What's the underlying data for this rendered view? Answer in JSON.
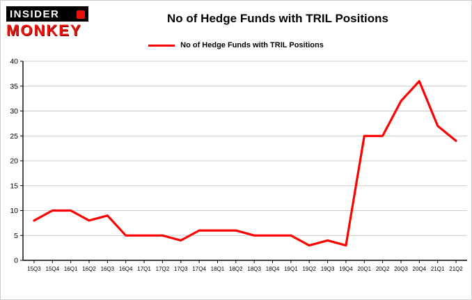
{
  "logo": {
    "line1": "INSIDER",
    "line2": "MONKEY"
  },
  "header": {
    "title": "No of Hedge Funds with TRIL Positions"
  },
  "chart_data": {
    "type": "line",
    "title": "No of Hedge Funds with TRIL Positions",
    "xlabel": "",
    "ylabel": "",
    "categories": [
      "15Q3",
      "15Q4",
      "16Q1",
      "16Q2",
      "16Q3",
      "16Q4",
      "17Q1",
      "17Q2",
      "17Q3",
      "17Q4",
      "18Q1",
      "18Q2",
      "18Q3",
      "18Q4",
      "19Q1",
      "19Q2",
      "19Q3",
      "19Q4",
      "20Q1",
      "20Q2",
      "20Q3",
      "20Q4",
      "21Q1",
      "21Q2"
    ],
    "series": [
      {
        "name": "No of Hedge Funds with TRIL Positions",
        "color": "#fe0000",
        "values": [
          8,
          10,
          10,
          8,
          9,
          5,
          5,
          5,
          4,
          6,
          6,
          6,
          5,
          5,
          5,
          3,
          4,
          3,
          25,
          25,
          32,
          36,
          27,
          24
        ]
      }
    ],
    "ylim": [
      0,
      40
    ],
    "yticks": [
      0,
      5,
      10,
      15,
      20,
      25,
      30,
      35,
      40
    ],
    "grid": true,
    "legend_position": "top-center",
    "colors": {
      "grid": "#c9c9c9",
      "axis": "#000000",
      "background": "#ffffff"
    }
  }
}
